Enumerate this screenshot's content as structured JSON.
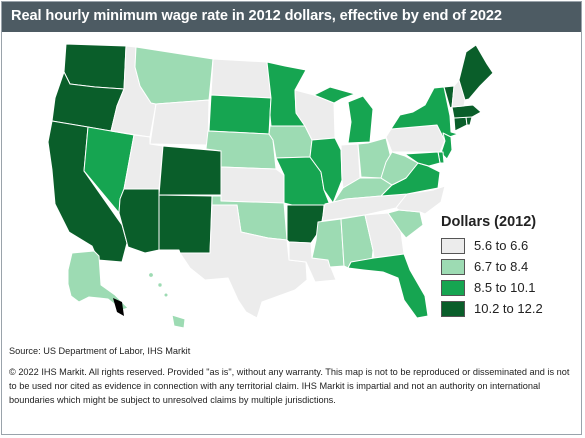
{
  "title": "Real hourly minimum wage rate in 2012 dollars, effective by end of 2022",
  "legend": {
    "title": "Dollars (2012)",
    "bins": [
      {
        "label": "5.6 to 6.6",
        "color": "#ececec"
      },
      {
        "label": "6.7 to 8.4",
        "color": "#9ddbb3"
      },
      {
        "label": "8.5 to 10.1",
        "color": "#16a551"
      },
      {
        "label": "10.2 to 12.2",
        "color": "#0a5e2a"
      }
    ]
  },
  "states": [
    {
      "code": "WA",
      "bin": 3
    },
    {
      "code": "OR",
      "bin": 3
    },
    {
      "code": "CA",
      "bin": 3
    },
    {
      "code": "NV",
      "bin": 2
    },
    {
      "code": "ID",
      "bin": 0
    },
    {
      "code": "MT",
      "bin": 1
    },
    {
      "code": "WY",
      "bin": 0
    },
    {
      "code": "UT",
      "bin": 0
    },
    {
      "code": "AZ",
      "bin": 3
    },
    {
      "code": "CO",
      "bin": 3
    },
    {
      "code": "NM",
      "bin": 3
    },
    {
      "code": "ND",
      "bin": 0
    },
    {
      "code": "SD",
      "bin": 2
    },
    {
      "code": "NE",
      "bin": 1
    },
    {
      "code": "KS",
      "bin": 0
    },
    {
      "code": "OK",
      "bin": 1
    },
    {
      "code": "TX",
      "bin": 0
    },
    {
      "code": "MN",
      "bin": 2
    },
    {
      "code": "IA",
      "bin": 1
    },
    {
      "code": "MO",
      "bin": 2
    },
    {
      "code": "AR",
      "bin": 3
    },
    {
      "code": "LA",
      "bin": 0
    },
    {
      "code": "WI",
      "bin": 0
    },
    {
      "code": "IL",
      "bin": 2
    },
    {
      "code": "MI",
      "bin": 2
    },
    {
      "code": "IN",
      "bin": 0
    },
    {
      "code": "OH",
      "bin": 1
    },
    {
      "code": "KY",
      "bin": 1
    },
    {
      "code": "TN",
      "bin": 0
    },
    {
      "code": "MS",
      "bin": 1
    },
    {
      "code": "AL",
      "bin": 1
    },
    {
      "code": "GA",
      "bin": 0
    },
    {
      "code": "FL",
      "bin": 2
    },
    {
      "code": "SC",
      "bin": 1
    },
    {
      "code": "NC",
      "bin": 0
    },
    {
      "code": "VA",
      "bin": 2
    },
    {
      "code": "WV",
      "bin": 1
    },
    {
      "code": "PA",
      "bin": 0
    },
    {
      "code": "NY",
      "bin": 2
    },
    {
      "code": "NJ",
      "bin": 2
    },
    {
      "code": "DE",
      "bin": 2
    },
    {
      "code": "MD",
      "bin": 2
    },
    {
      "code": "CT",
      "bin": 3
    },
    {
      "code": "RI",
      "bin": 3
    },
    {
      "code": "MA",
      "bin": 3
    },
    {
      "code": "VT",
      "bin": 3
    },
    {
      "code": "NH",
      "bin": 0
    },
    {
      "code": "ME",
      "bin": 3
    },
    {
      "code": "AK",
      "bin": 1
    },
    {
      "code": "HI",
      "bin": 1
    }
  ],
  "source": "Source: US Department of Labor, IHS Markit",
  "copyright": "© 2022 IHS Markit. All rights reserved. Provided \"as is\", without any warranty. This map is not to be reproduced or disseminated and is not to be used nor cited as evidence in connection with any territorial claim. IHS Markit is impartial and not an authority on international boundaries which might be subject to unresolved claims by multiple jurisdictions."
}
